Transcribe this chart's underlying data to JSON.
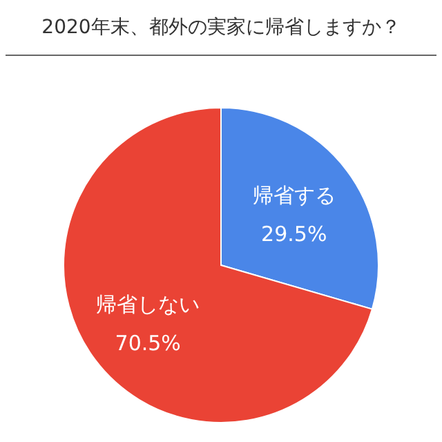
{
  "chart_data": {
    "type": "pie",
    "title": "2020年末、都外の実家に帰省しますか？",
    "categories": [
      "帰省する",
      "帰省しない"
    ],
    "values": [
      29.5,
      70.5
    ],
    "colors": [
      "#4a86e8",
      "#ea4335"
    ],
    "value_labels": [
      "29.5%",
      "70.5%"
    ]
  }
}
